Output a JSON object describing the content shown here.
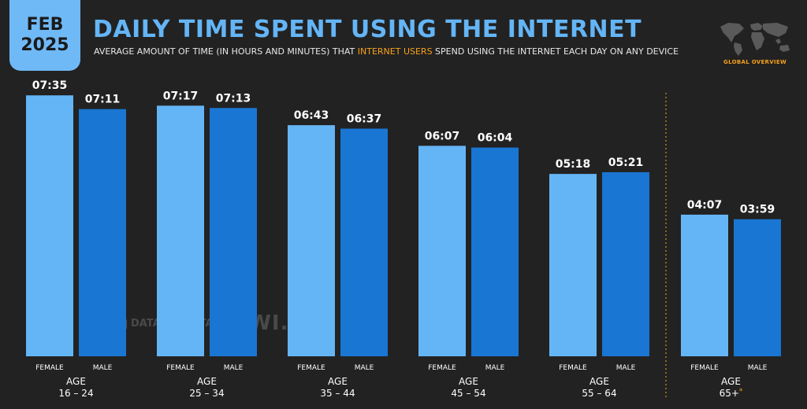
{
  "badge": {
    "month": "FEB",
    "year": "2025"
  },
  "header": {
    "title": "DAILY TIME SPENT USING THE INTERNET",
    "subtitle_pre": "AVERAGE AMOUNT OF TIME (IN HOURS AND MINUTES) THAT ",
    "subtitle_highlight": "INTERNET USERS",
    "subtitle_post": " SPEND USING THE INTERNET EACH DAY ON ANY DEVICE",
    "overview_label": "GLOBAL OVERVIEW"
  },
  "watermark": {
    "left": "DATAREPORTAL",
    "right": "GWI."
  },
  "colors": {
    "female": "#64b5f6",
    "male": "#1976d2",
    "accent": "#f7a21b",
    "background": "#222222"
  },
  "chart_data": {
    "type": "bar",
    "title": "DAILY TIME SPENT USING THE INTERNET",
    "unit": "hours:minutes",
    "ylim": [
      0,
      8
    ],
    "grid": false,
    "group_prefix": "AGE",
    "categories": [
      "16 – 24",
      "25 – 34",
      "35 – 44",
      "45 – 54",
      "55 – 64",
      "65+"
    ],
    "category_notes": [
      "",
      "",
      "",
      "",
      "",
      "*"
    ],
    "series": [
      {
        "name": "FEMALE",
        "labels": [
          "07:35",
          "07:17",
          "06:43",
          "06:07",
          "05:18",
          "04:07"
        ]
      },
      {
        "name": "MALE",
        "labels": [
          "07:11",
          "07:13",
          "06:37",
          "06:04",
          "05:21",
          "03:59"
        ]
      }
    ]
  }
}
